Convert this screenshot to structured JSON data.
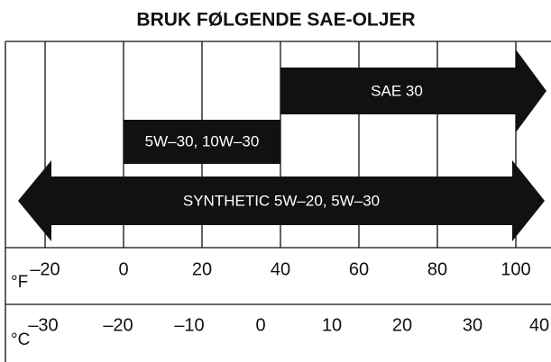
{
  "title": "BRUK FØLGENDE SAE-OLJER",
  "arrows": [
    "SAE 30",
    "5W–30, 10W–30",
    "SYNTHETIC 5W–20, 5W–30"
  ],
  "fahrenheit": {
    "unit": "°F",
    "ticks": [
      "–20",
      "0",
      "20",
      "40",
      "60",
      "80",
      "100"
    ]
  },
  "celsius": {
    "unit": "°C",
    "ticks": [
      "–30",
      "–20",
      "–10",
      "0",
      "10",
      "20",
      "30",
      "40"
    ]
  }
}
